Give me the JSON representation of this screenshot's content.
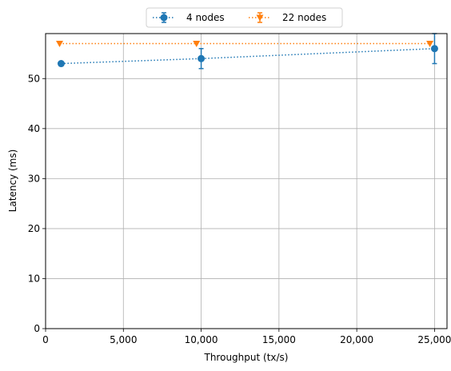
{
  "chart_data": {
    "type": "line",
    "title": "",
    "xlabel": "Throughput (tx/s)",
    "ylabel": "Latency (ms)",
    "xlim": [
      0,
      25800
    ],
    "ylim": [
      0,
      59
    ],
    "xticks": [
      0,
      5000,
      10000,
      15000,
      20000,
      25000
    ],
    "xtick_labels": [
      "0",
      "5,000",
      "10,000",
      "15,000",
      "20,000",
      "25,000"
    ],
    "yticks": [
      0,
      10,
      20,
      30,
      40,
      50
    ],
    "ytick_labels": [
      "0",
      "10",
      "20",
      "30",
      "40",
      "50"
    ],
    "grid": true,
    "legend_position": "top-center",
    "series": [
      {
        "name": "4 nodes",
        "color": "#1f77b4",
        "marker": "circle",
        "linestyle": "dotted",
        "points": [
          {
            "x": 1000,
            "y": 53,
            "err": 0
          },
          {
            "x": 10000,
            "y": 54,
            "err": 2
          },
          {
            "x": 25000,
            "y": 56,
            "err": 3
          }
        ]
      },
      {
        "name": "22 nodes",
        "color": "#ff7f0e",
        "marker": "triangle-down",
        "linestyle": "dotted",
        "points": [
          {
            "x": 900,
            "y": 57,
            "err": 0
          },
          {
            "x": 9700,
            "y": 57,
            "err": 0
          },
          {
            "x": 24700,
            "y": 57,
            "err": 0
          }
        ]
      }
    ]
  }
}
